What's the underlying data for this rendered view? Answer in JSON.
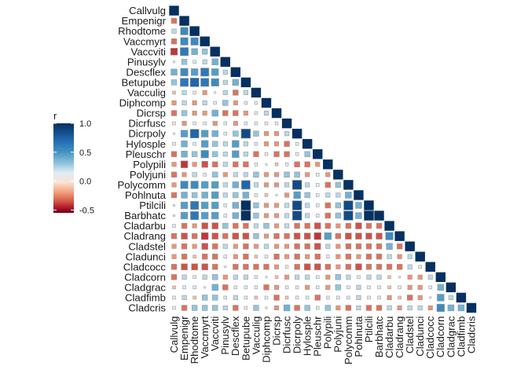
{
  "chart_data": {
    "type": "heatmap",
    "subtype": "lower-triangle correlation matrix (square size ~ |r|)",
    "variables": [
      "Callvulg",
      "Empenigr",
      "Rhodtome",
      "Vaccmyrt",
      "Vaccviti",
      "Pinusylv",
      "Descflex",
      "Betupube",
      "Vacculig",
      "Diphcomp",
      "Dicrsp",
      "Dicrfusc",
      "Dicrpoly",
      "Hylosple",
      "Pleuschr",
      "Polypili",
      "Polyjuni",
      "Polycomm",
      "Pohlnuta",
      "Ptilcili",
      "Barbhatc",
      "Cladarbu",
      "Cladrang",
      "Cladstel",
      "Cladunci",
      "Cladcocc",
      "Cladcorn",
      "Cladgrac",
      "Cladfimb",
      "Cladcris"
    ],
    "values": [
      [],
      [
        -0.3
      ],
      [
        0.2,
        0.6
      ],
      [
        -0.3,
        0.6,
        0.6
      ],
      [
        -0.5,
        0.7,
        0.4,
        0.3
      ],
      [
        0.0,
        0.3,
        0.1,
        0.2,
        0.4
      ],
      [
        0.4,
        0.6,
        0.5,
        0.7,
        0.5,
        0.2
      ],
      [
        0.3,
        0.7,
        0.8,
        0.7,
        0.6,
        0.2,
        0.4
      ],
      [
        -0.1,
        0.2,
        0.1,
        -0.2,
        0.0,
        0.2,
        -0.3,
        0.2
      ],
      [
        -0.2,
        0.2,
        -0.2,
        0.2,
        0.1,
        0.3,
        -0.2,
        0.1,
        0.1
      ],
      [
        -0.3,
        0.3,
        -0.2,
        -0.2,
        0.4,
        -0.3,
        -0.3,
        -0.2,
        0.1,
        0.2
      ],
      [
        0.1,
        -0.2,
        0.1,
        0.1,
        -0.2,
        0.1,
        -0.2,
        0.1,
        0.1,
        0.1,
        0.1
      ],
      [
        0.0,
        0.5,
        0.8,
        0.5,
        0.4,
        0.1,
        0.3,
        0.9,
        0.3,
        -0.2,
        -0.2,
        0.2
      ],
      [
        0.1,
        0.4,
        0.1,
        0.5,
        0.3,
        0.2,
        0.5,
        0.2,
        0.1,
        -0.2,
        -0.2,
        -0.3,
        0.1
      ],
      [
        -0.3,
        0.4,
        0.3,
        0.6,
        0.3,
        0.2,
        0.5,
        0.2,
        -0.3,
        0.1,
        -0.3,
        -0.3,
        0.1,
        0.3
      ],
      [
        -0.2,
        -0.5,
        -0.2,
        -0.4,
        -0.3,
        0.2,
        -0.3,
        -0.3,
        0.1,
        0.0,
        -0.1,
        0.1,
        -0.3,
        -0.3,
        -0.2
      ],
      [
        -0.3,
        -0.2,
        0.2,
        0.1,
        0.3,
        -0.2,
        0.2,
        0.2,
        0.3,
        -0.2,
        -0.2,
        0.3,
        0.3,
        -0.2,
        0.1,
        -0.2
      ],
      [
        -0.2,
        0.6,
        0.6,
        0.5,
        0.5,
        0.2,
        0.4,
        0.8,
        0.2,
        -0.2,
        -0.2,
        0.2,
        0.9,
        0.2,
        0.1,
        -0.3,
        0.3
      ],
      [
        -0.3,
        0.4,
        0.3,
        0.4,
        0.5,
        0.2,
        0.3,
        0.4,
        0.1,
        -0.1,
        0.0,
        -0.2,
        0.5,
        0.3,
        0.1,
        0.2,
        0.2,
        0.4
      ],
      [
        0.0,
        0.5,
        0.7,
        0.5,
        0.5,
        0.1,
        0.4,
        1.0,
        0.3,
        -0.2,
        -0.2,
        0.2,
        0.9,
        0.2,
        0.1,
        -0.3,
        0.3,
        0.9,
        0.4
      ],
      [
        0.0,
        0.5,
        0.7,
        0.5,
        0.5,
        0.1,
        0.4,
        1.0,
        0.3,
        -0.2,
        -0.2,
        0.2,
        0.9,
        0.2,
        0.1,
        -0.3,
        0.3,
        0.9,
        0.4,
        1.0
      ],
      [
        0.1,
        -0.3,
        -0.2,
        -0.4,
        -0.4,
        0.3,
        -0.3,
        -0.3,
        0.2,
        0.3,
        -0.2,
        0.2,
        -0.3,
        -0.3,
        -0.4,
        -0.3,
        -0.2,
        -0.3,
        -0.4,
        -0.3,
        -0.3
      ],
      [
        -0.3,
        -0.4,
        -0.3,
        -0.5,
        -0.4,
        -0.3,
        -0.4,
        -0.4,
        0.3,
        -0.2,
        -0.3,
        -0.3,
        -0.4,
        -0.4,
        -0.5,
        0.5,
        -0.3,
        -0.4,
        -0.4,
        -0.4,
        -0.4,
        0.6
      ],
      [
        -0.2,
        -0.3,
        -0.2,
        -0.4,
        -0.3,
        0.2,
        -0.2,
        -0.3,
        -0.2,
        0.2,
        -0.2,
        -0.2,
        -0.3,
        -0.3,
        -0.4,
        0.2,
        -0.2,
        -0.3,
        -0.3,
        -0.3,
        -0.3,
        0.4,
        -0.3
      ],
      [
        -0.2,
        -0.3,
        -0.1,
        -0.3,
        -0.3,
        0.1,
        -0.2,
        -0.3,
        -0.1,
        0.1,
        -0.3,
        -0.2,
        -0.3,
        -0.2,
        -0.3,
        0.1,
        -0.2,
        -0.3,
        -0.2,
        -0.3,
        -0.3,
        0.2,
        -0.2,
        0.2
      ],
      [
        -0.3,
        -0.4,
        -0.4,
        -0.4,
        -0.3,
        0.0,
        -0.3,
        -0.3,
        -0.3,
        -0.3,
        -0.2,
        0.1,
        -0.3,
        -0.4,
        -0.4,
        -0.3,
        -0.2,
        -0.3,
        -0.4,
        -0.3,
        -0.3,
        -0.3,
        -0.3,
        0.2,
        0.1
      ],
      [
        -0.3,
        0.2,
        0.1,
        0.2,
        0.3,
        -0.2,
        0.2,
        0.2,
        0.1,
        0.0,
        -0.1,
        -0.2,
        0.2,
        0.2,
        0.1,
        -0.2,
        0.3,
        0.2,
        0.1,
        0.2,
        0.2,
        -0.1,
        0.0,
        -0.2,
        -0.2,
        0.2
      ],
      [
        -0.1,
        0.1,
        0.1,
        0.0,
        0.4,
        -0.3,
        0.1,
        0.1,
        0.1,
        -0.3,
        -0.2,
        0.1,
        0.1,
        -0.2,
        0.1,
        -0.2,
        0.3,
        0.1,
        0.2,
        0.1,
        0.1,
        -0.1,
        0.1,
        -0.2,
        -0.2,
        0.1,
        0.4
      ],
      [
        0.1,
        0.2,
        -0.1,
        0.3,
        0.3,
        0.1,
        0.2,
        0.1,
        -0.1,
        0.1,
        -0.3,
        -0.1,
        0.1,
        0.1,
        -0.3,
        0.1,
        0.1,
        0.1,
        0.2,
        0.1,
        0.1,
        -0.2,
        -0.1,
        -0.3,
        -0.2,
        0.0,
        0.5,
        0.2
      ],
      [
        0.1,
        -0.3,
        0.3,
        0.3,
        0.3,
        0.2,
        -0.3,
        0.1,
        0.3,
        0.0,
        -0.2,
        0.4,
        -0.3,
        0.3,
        0.1,
        0.3,
        -0.2,
        -0.3,
        0.2,
        -0.3,
        -0.3,
        0.2,
        -0.2,
        0.2,
        0.2,
        -0.2,
        0.6,
        0.4,
        0.4
      ]
    ],
    "diagonal": 1.0,
    "legend": {
      "title": "r",
      "ticks": [
        "1.0",
        "0.5",
        "0.0",
        "-0.5"
      ],
      "tick_values": [
        1.0,
        0.5,
        0.0,
        -0.5
      ],
      "range": [
        -0.55,
        1.0
      ],
      "placement": "left"
    },
    "colors": {
      "strong_negative": "#67001f",
      "negative": "#d6604d",
      "neutral": "#f7f7f7",
      "positive": "#92c5de",
      "strong_positive": "#053061",
      "cell_border": "#bdbdbd"
    }
  }
}
